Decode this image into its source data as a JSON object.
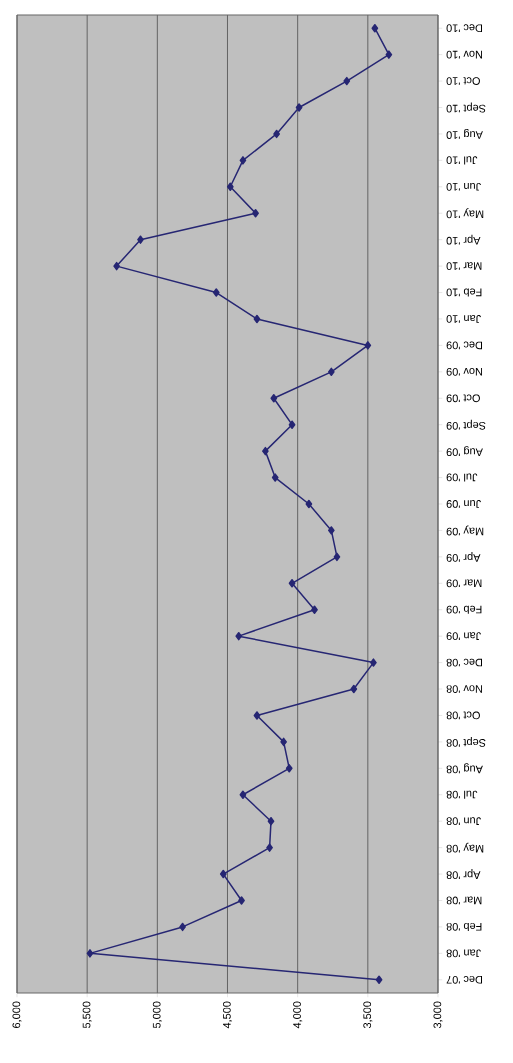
{
  "chart_data": {
    "type": "line",
    "orientation": "horizontal",
    "categories": [
      "Dec '10",
      "Nov '10",
      "Oct '10",
      "Sept '10",
      "Aug '10",
      "Jul '10",
      "Jun '10",
      "May '10",
      "Apr '10",
      "Mar '10",
      "Feb '10",
      "Jan '10",
      "Dec '09",
      "Nov '09",
      "Oct '09",
      "Sept '09",
      "Aug '09",
      "Jul '09",
      "Jun '09",
      "May '09",
      "Apr '09",
      "Mar '09",
      "Feb '09",
      "Jan '09",
      "Dec '08",
      "Nov '08",
      "Oct '08",
      "Sept '08",
      "Aug '08",
      "Jul '08",
      "Jun '08",
      "May '08",
      "Apr '08",
      "Mar '08",
      "Feb '08",
      "Jan '08",
      "Dec '07"
    ],
    "values": [
      3450,
      3350,
      3650,
      3990,
      4150,
      4390,
      4480,
      4300,
      5120,
      5290,
      4580,
      4290,
      3500,
      3760,
      4170,
      4040,
      4230,
      4160,
      3920,
      3760,
      3720,
      4040,
      3880,
      4420,
      3460,
      3600,
      4290,
      4100,
      4060,
      4390,
      4190,
      4200,
      4530,
      4400,
      4820,
      5480,
      3420
    ],
    "color": "#262673",
    "xlim": [
      6000,
      3000
    ],
    "xticks": [
      {
        "value": 6000,
        "label": "6,000"
      },
      {
        "value": 5500,
        "label": "5,500"
      },
      {
        "value": 5000,
        "label": "5,000"
      },
      {
        "value": 4500,
        "label": "4,500"
      },
      {
        "value": 4000,
        "label": "4,000"
      },
      {
        "value": 3500,
        "label": "3,500"
      },
      {
        "value": 3000,
        "label": "3,000"
      }
    ],
    "grid": "x",
    "marker": "diamond",
    "line_style": "solid"
  }
}
